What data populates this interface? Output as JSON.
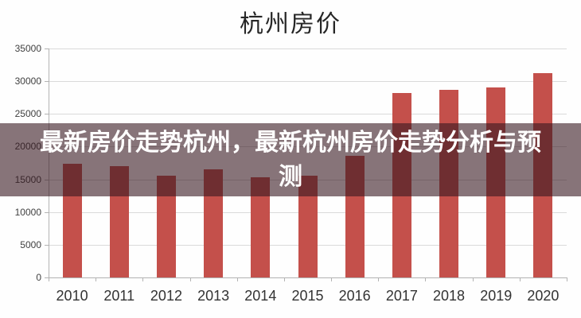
{
  "title": "杭州房价",
  "overlay": {
    "text": "最新房价走势杭州，最新杭州房价走势分析与预测",
    "background": "rgba(55,23,32,0.6)",
    "text_color": "#ffffff"
  },
  "chart_data": {
    "type": "bar",
    "title": "杭州房价",
    "categories": [
      "2010",
      "2011",
      "2012",
      "2013",
      "2014",
      "2015",
      "2016",
      "2017",
      "2018",
      "2019",
      "2020"
    ],
    "values": [
      17400,
      17000,
      15600,
      16500,
      15300,
      15600,
      18600,
      28200,
      28700,
      29000,
      31200
    ],
    "xlabel": "",
    "ylabel": "",
    "ylim": [
      0,
      35000
    ],
    "ytick_step": 5000,
    "ytick_labels": [
      "0",
      "5000",
      "10000",
      "15000",
      "20000",
      "25000",
      "30000",
      "35000"
    ],
    "grid": true,
    "legend_position": "none",
    "bar_color": "#c4504b",
    "grid_color": "#dadada",
    "axis_color": "#b3b3b3",
    "tick_label_color": "#404040"
  }
}
